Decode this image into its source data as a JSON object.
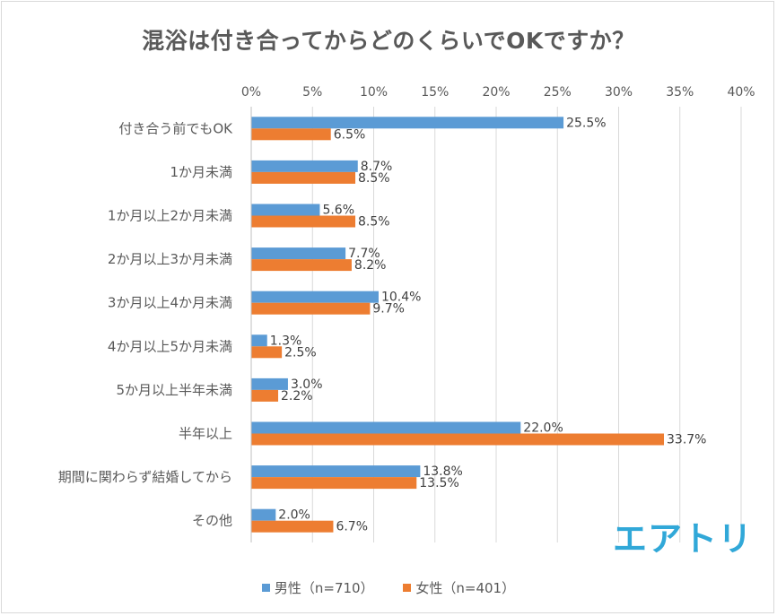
{
  "title": "混浴は付き合ってからどのくらいでOKですか？",
  "logo_text": "エアトリ",
  "chart_data": {
    "type": "bar",
    "orientation": "horizontal",
    "title": "混浴は付き合ってからどのくらいでOKですか？",
    "xlim": [
      0,
      40
    ],
    "xticks": [
      "0%",
      "5%",
      "10%",
      "15%",
      "20%",
      "25%",
      "30%",
      "35%",
      "40%"
    ],
    "xtick_values": [
      0,
      5,
      10,
      15,
      20,
      25,
      30,
      35,
      40
    ],
    "categories": [
      "付き合う前でもOK",
      "1か月未満",
      "1か月以上2か月未満",
      "2か月以上3か月未満",
      "3か月以上4か月未満",
      "4か月以上5か月未満",
      "5か月以上半年未満",
      "半年以上",
      "期間に関わらず結婚してから",
      "その他"
    ],
    "series": [
      {
        "name": "男性（n=710）",
        "color": "#5b9bd5",
        "values": [
          25.5,
          8.7,
          5.6,
          7.7,
          10.4,
          1.3,
          3.0,
          22.0,
          13.8,
          2.0
        ],
        "labels": [
          "25.5%",
          "8.7%",
          "5.6%",
          "7.7%",
          "10.4%",
          "1.3%",
          "3.0%",
          "22.0%",
          "13.8%",
          "2.0%"
        ]
      },
      {
        "name": "女性（n=401）",
        "color": "#ed7d31",
        "values": [
          6.5,
          8.5,
          8.5,
          8.2,
          9.7,
          2.5,
          2.2,
          33.7,
          13.5,
          6.7
        ],
        "labels": [
          "6.5%",
          "8.5%",
          "8.5%",
          "8.2%",
          "9.7%",
          "2.5%",
          "2.2%",
          "33.7%",
          "13.5%",
          "6.7%"
        ]
      }
    ],
    "grid": true,
    "legend_position": "bottom"
  }
}
